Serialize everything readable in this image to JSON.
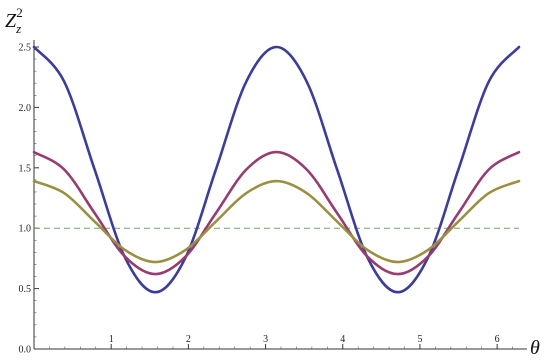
{
  "chart_data": {
    "type": "line",
    "title": "",
    "xlabel": "θ",
    "ylabel": {
      "base": "Z",
      "sub": "z",
      "sup": "2"
    },
    "xlim": [
      0,
      6.2832
    ],
    "ylim": [
      0,
      2.5
    ],
    "x_ticks": [
      {
        "value": 1,
        "label": "1"
      },
      {
        "value": 2,
        "label": "2"
      },
      {
        "value": 3,
        "label": "3"
      },
      {
        "value": 4,
        "label": "4"
      },
      {
        "value": 5,
        "label": "5"
      },
      {
        "value": 6,
        "label": "6"
      }
    ],
    "y_ticks": [
      {
        "value": 0.0,
        "label": "0.0"
      },
      {
        "value": 0.5,
        "label": "0.5"
      },
      {
        "value": 1.0,
        "label": "1.0"
      },
      {
        "value": 1.5,
        "label": "1.5"
      },
      {
        "value": 2.0,
        "label": "2.0"
      },
      {
        "value": 2.5,
        "label": "2.5"
      }
    ],
    "grid": false,
    "legend": "none",
    "reference_line": {
      "y": 1.0,
      "style": "dashed",
      "color": "#6aaa6a"
    },
    "series": [
      {
        "color": "#3c3c9a",
        "x": [
          0,
          0.3927,
          0.7854,
          1.1781,
          1.5708,
          1.9635,
          2.3562,
          2.7489,
          3.1416,
          3.5343,
          3.927,
          4.3197,
          4.7124,
          5.1051,
          5.4978,
          5.8905,
          6.2832
        ],
        "y": [
          2.5,
          2.212,
          1.485,
          0.758,
          0.47,
          0.758,
          1.485,
          2.212,
          2.5,
          2.212,
          1.485,
          0.758,
          0.47,
          0.758,
          1.485,
          2.212,
          2.5
        ]
      },
      {
        "color": "#963c70",
        "x": [
          0,
          0.3927,
          0.7854,
          1.1781,
          1.5708,
          1.9635,
          2.3562,
          2.7489,
          3.1416,
          3.5343,
          3.927,
          4.3197,
          4.7124,
          5.1051,
          5.4978,
          5.8905,
          6.2832
        ],
        "y": [
          1.63,
          1.485,
          1.125,
          0.765,
          0.62,
          0.765,
          1.125,
          1.485,
          1.63,
          1.485,
          1.125,
          0.765,
          0.62,
          0.765,
          1.125,
          1.485,
          1.63
        ]
      },
      {
        "color": "#9a9040",
        "x": [
          0,
          0.3927,
          0.7854,
          1.1781,
          1.5708,
          1.9635,
          2.3562,
          2.7489,
          3.1416,
          3.5343,
          3.927,
          4.3197,
          4.7124,
          5.1051,
          5.4978,
          5.8905,
          6.2832
        ],
        "y": [
          1.39,
          1.29,
          1.055,
          0.82,
          0.72,
          0.82,
          1.055,
          1.29,
          1.39,
          1.29,
          1.055,
          0.82,
          0.72,
          0.82,
          1.055,
          1.29,
          1.39
        ]
      }
    ]
  }
}
